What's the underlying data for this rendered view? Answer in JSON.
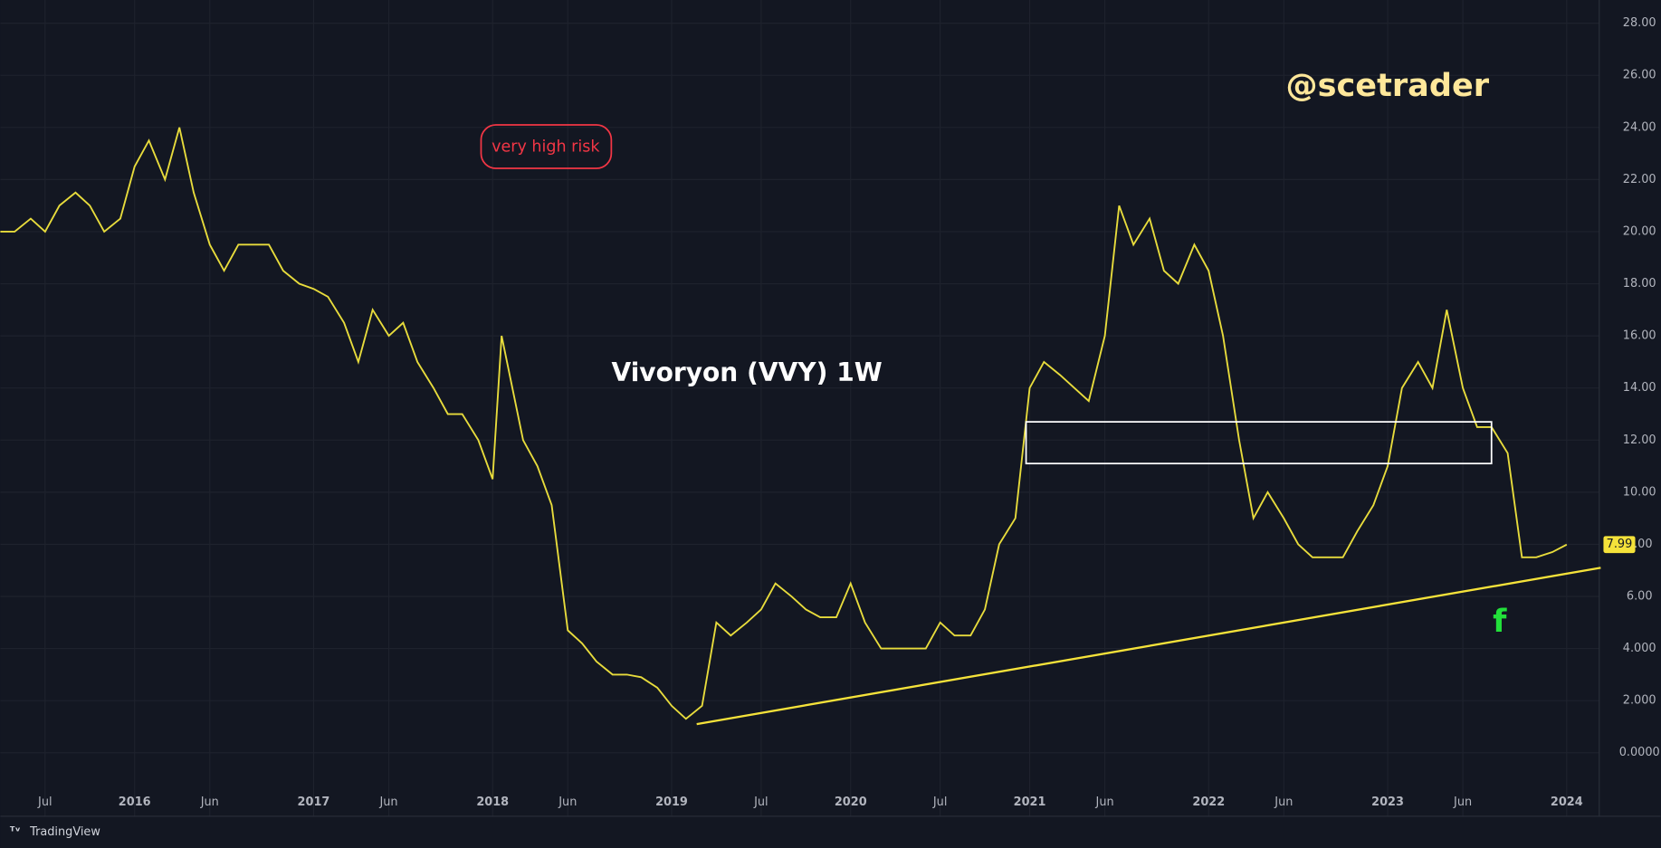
{
  "chart_data": {
    "type": "line",
    "title": "Vivoryon (VVY) 1W",
    "watermark": "@scetrader",
    "risk_note": "very high risk",
    "signal_note": "f",
    "branding": "TradingView",
    "xlim": [
      2015.25,
      2024.17
    ],
    "xticks": [
      {
        "value": 2015.5,
        "label": "Jul"
      },
      {
        "value": 2016,
        "label": "2016"
      },
      {
        "value": 2016.42,
        "label": "Jun"
      },
      {
        "value": 2017,
        "label": "2017"
      },
      {
        "value": 2017.42,
        "label": "Jun"
      },
      {
        "value": 2018,
        "label": "2018"
      },
      {
        "value": 2018.42,
        "label": "Jun"
      },
      {
        "value": 2019,
        "label": "2019"
      },
      {
        "value": 2019.5,
        "label": "Jul"
      },
      {
        "value": 2020,
        "label": "2020"
      },
      {
        "value": 2020.5,
        "label": "Jul"
      },
      {
        "value": 2021,
        "label": "2021"
      },
      {
        "value": 2021.42,
        "label": "Jun"
      },
      {
        "value": 2022,
        "label": "2022"
      },
      {
        "value": 2022.42,
        "label": "Jun"
      },
      {
        "value": 2023,
        "label": "2023"
      },
      {
        "value": 2023.42,
        "label": "Jun"
      },
      {
        "value": 2024,
        "label": "2024"
      }
    ],
    "ylim": [
      -1.38,
      28.89
    ],
    "yticks": [
      {
        "value": 0,
        "label": "0.0000"
      },
      {
        "value": 2,
        "label": "2.000"
      },
      {
        "value": 4,
        "label": "4.000"
      },
      {
        "value": 6,
        "label": "6.00"
      },
      {
        "value": 8,
        "label": "8.00"
      },
      {
        "value": 10,
        "label": "10.00"
      },
      {
        "value": 12,
        "label": "12.00"
      },
      {
        "value": 14,
        "label": "14.00"
      },
      {
        "value": 16,
        "label": "16.00"
      },
      {
        "value": 18,
        "label": "18.00"
      },
      {
        "value": 20,
        "label": "20.00"
      },
      {
        "value": 22,
        "label": "22.00"
      },
      {
        "value": 24,
        "label": "24.00"
      },
      {
        "value": 26,
        "label": "26.00"
      },
      {
        "value": 28,
        "label": "28.00"
      }
    ],
    "grid": true,
    "color": "#e8dc3c",
    "x": [
      2015.25,
      2015.33,
      2015.42,
      2015.5,
      2015.58,
      2015.67,
      2015.75,
      2015.83,
      2015.92,
      2016.0,
      2016.08,
      2016.17,
      2016.25,
      2016.33,
      2016.42,
      2016.5,
      2016.58,
      2016.67,
      2016.75,
      2016.83,
      2016.92,
      2017.0,
      2017.08,
      2017.17,
      2017.25,
      2017.33,
      2017.42,
      2017.5,
      2017.58,
      2017.67,
      2017.75,
      2017.83,
      2017.92,
      2018.0,
      2018.05,
      2018.17,
      2018.25,
      2018.33,
      2018.42,
      2018.5,
      2018.58,
      2018.67,
      2018.75,
      2018.83,
      2018.92,
      2019.0,
      2019.08,
      2019.17,
      2019.25,
      2019.33,
      2019.42,
      2019.5,
      2019.58,
      2019.67,
      2019.75,
      2019.83,
      2019.92,
      2020.0,
      2020.08,
      2020.17,
      2020.25,
      2020.33,
      2020.42,
      2020.5,
      2020.58,
      2020.67,
      2020.75,
      2020.83,
      2020.92,
      2021.0,
      2021.08,
      2021.17,
      2021.25,
      2021.33,
      2021.42,
      2021.5,
      2021.58,
      2021.67,
      2021.75,
      2021.83,
      2021.92,
      2022.0,
      2022.08,
      2022.17,
      2022.25,
      2022.33,
      2022.42,
      2022.5,
      2022.58,
      2022.67,
      2022.75,
      2022.83,
      2022.92,
      2023.0,
      2023.08,
      2023.17,
      2023.25,
      2023.33,
      2023.42,
      2023.5,
      2023.58,
      2023.67,
      2023.75,
      2023.83,
      2023.92,
      2024.0
    ],
    "values": [
      20,
      20,
      20.5,
      20,
      21,
      21.5,
      21,
      20,
      20.5,
      22.5,
      23.5,
      22,
      24,
      21.5,
      19.5,
      18.5,
      19.5,
      19.5,
      19.5,
      18.5,
      18,
      17.8,
      17.5,
      16.5,
      15,
      17,
      16,
      16.5,
      15,
      14,
      13,
      13,
      12,
      10.5,
      16,
      12,
      11,
      9.5,
      4.7,
      4.2,
      3.5,
      3,
      3,
      2.9,
      2.5,
      1.8,
      1.3,
      1.8,
      5,
      4.5,
      5,
      5.5,
      6.5,
      6,
      5.5,
      5.2,
      5.2,
      6.5,
      5,
      4,
      4,
      4,
      4,
      5,
      4.5,
      4.5,
      5.5,
      8,
      9,
      14,
      15,
      14.5,
      14,
      13.5,
      16,
      21,
      19.5,
      20.5,
      18.5,
      18,
      19.5,
      18.5,
      16,
      12,
      9,
      10,
      9,
      8,
      7.5,
      7.5,
      7.5,
      8.5,
      9.5,
      11,
      14,
      15,
      14,
      17,
      14,
      12.5,
      12.5,
      11.5,
      7.5,
      7.5,
      7.7,
      7.99
    ],
    "last_price": 7.99,
    "trendline": {
      "x": [
        2019.14,
        2024.19
      ],
      "y": [
        1.1,
        7.1
      ]
    },
    "zone": {
      "x": [
        2020.98,
        2023.58
      ],
      "y": [
        11.1,
        12.7
      ]
    }
  }
}
